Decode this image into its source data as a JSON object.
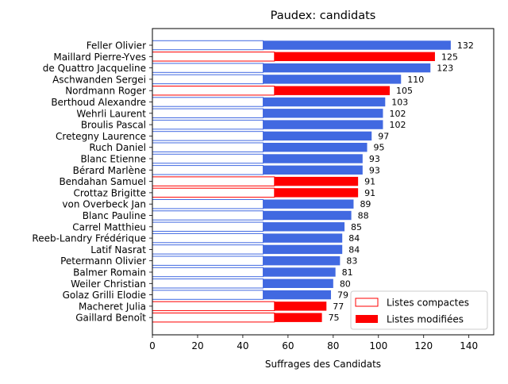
{
  "chart_data": {
    "type": "bar",
    "orientation": "horizontal",
    "title": "Paudex: candidats",
    "xlabel": "Suffrages des Candidats",
    "ylabel": "",
    "xlim": [
      0,
      151
    ],
    "xticks": [
      0,
      20,
      40,
      60,
      80,
      100,
      120,
      140
    ],
    "legend_position": "lower-right",
    "legend": [
      {
        "label": "Listes compactes",
        "style": "outline",
        "color": "#ff0000"
      },
      {
        "label": "Listes modifiées",
        "style": "filled",
        "color": "#ff0000"
      }
    ],
    "colors": {
      "blue": "#4169e1",
      "red": "#ff0000"
    },
    "candidates": [
      {
        "name": "Feller Olivier",
        "total": 132,
        "compact": 49,
        "color": "blue"
      },
      {
        "name": "Maillard Pierre-Yves",
        "total": 125,
        "compact": 54,
        "color": "red"
      },
      {
        "name": "de Quattro Jacqueline",
        "total": 123,
        "compact": 49,
        "color": "blue"
      },
      {
        "name": "Aschwanden Sergei",
        "total": 110,
        "compact": 49,
        "color": "blue"
      },
      {
        "name": "Nordmann Roger",
        "total": 105,
        "compact": 54,
        "color": "red"
      },
      {
        "name": "Berthoud Alexandre",
        "total": 103,
        "compact": 49,
        "color": "blue"
      },
      {
        "name": "Wehrli Laurent",
        "total": 102,
        "compact": 49,
        "color": "blue"
      },
      {
        "name": "Broulis Pascal",
        "total": 102,
        "compact": 49,
        "color": "blue"
      },
      {
        "name": "Cretegny Laurence",
        "total": 97,
        "compact": 49,
        "color": "blue"
      },
      {
        "name": "Ruch Daniel",
        "total": 95,
        "compact": 49,
        "color": "blue"
      },
      {
        "name": "Blanc Etienne",
        "total": 93,
        "compact": 49,
        "color": "blue"
      },
      {
        "name": "Bérard Marlène",
        "total": 93,
        "compact": 49,
        "color": "blue"
      },
      {
        "name": "Bendahan Samuel",
        "total": 91,
        "compact": 54,
        "color": "red"
      },
      {
        "name": "Crottaz Brigitte",
        "total": 91,
        "compact": 54,
        "color": "red"
      },
      {
        "name": "von Overbeck Jan",
        "total": 89,
        "compact": 49,
        "color": "blue"
      },
      {
        "name": "Blanc Pauline",
        "total": 88,
        "compact": 49,
        "color": "blue"
      },
      {
        "name": "Carrel Matthieu",
        "total": 85,
        "compact": 49,
        "color": "blue"
      },
      {
        "name": "Reeb-Landry Frédérique",
        "total": 84,
        "compact": 49,
        "color": "blue"
      },
      {
        "name": "Latif Nasrat",
        "total": 84,
        "compact": 49,
        "color": "blue"
      },
      {
        "name": "Petermann Olivier",
        "total": 83,
        "compact": 49,
        "color": "blue"
      },
      {
        "name": "Balmer Romain",
        "total": 81,
        "compact": 49,
        "color": "blue"
      },
      {
        "name": "Weiler Christian",
        "total": 80,
        "compact": 49,
        "color": "blue"
      },
      {
        "name": "Golaz Grilli Elodie",
        "total": 79,
        "compact": 49,
        "color": "blue"
      },
      {
        "name": "Macheret Julia",
        "total": 77,
        "compact": 54,
        "color": "red"
      },
      {
        "name": "Gaillard Benoît",
        "total": 75,
        "compact": 54,
        "color": "red"
      }
    ]
  }
}
